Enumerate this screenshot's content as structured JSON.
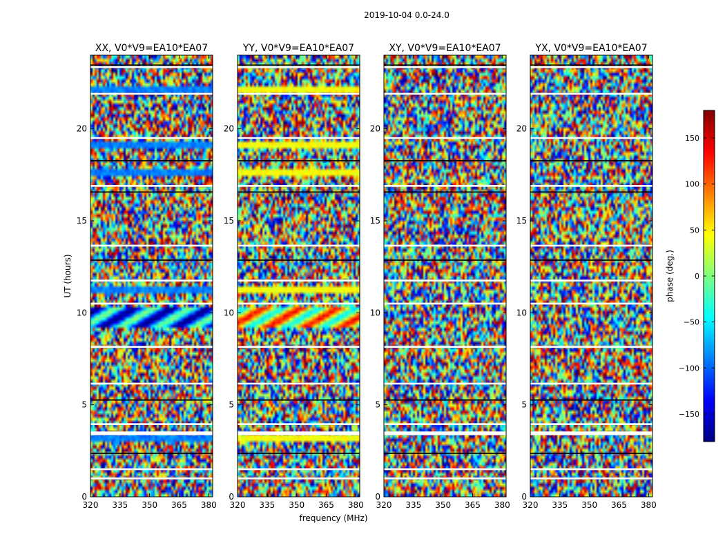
{
  "chart_data": {
    "type": "heatmap",
    "suptitle": "2019-10-04 0.0-24.0",
    "xlabel": "frequency (MHz)",
    "ylabel": "UT (hours)",
    "xlim": [
      320,
      382
    ],
    "ylim": [
      0,
      24
    ],
    "xticks": [
      320,
      335,
      350,
      365,
      380
    ],
    "yticks": [
      0,
      5,
      10,
      15,
      20
    ],
    "panels": [
      {
        "title": "XX, V0*V9=EA10*EA07",
        "pol": "XX"
      },
      {
        "title": "YY, V0*V9=EA10*EA07",
        "pol": "YY"
      },
      {
        "title": "XY, V0*V9=EA10*EA07",
        "pol": "XY"
      },
      {
        "title": "YX, V0*V9=EA10*EA07",
        "pol": "YX"
      }
    ],
    "colorbar": {
      "label": "phase (deg.)",
      "range": [
        -180,
        180
      ],
      "ticks": [
        150,
        100,
        50,
        0,
        -50,
        -100,
        -150
      ],
      "tick_labels": [
        "150",
        "100",
        "50",
        "0",
        "−50",
        "−100",
        "−150"
      ],
      "colormap": [
        "#00007f",
        "#0000ff",
        "#007fff",
        "#00ffff",
        "#7fff7f",
        "#ffff00",
        "#ff7f00",
        "#ff0000",
        "#7f0000"
      ]
    },
    "flagged_gaps_hours": [
      [
        0.95,
        1.05
      ],
      [
        1.45,
        1.55
      ],
      [
        3.35,
        3.55
      ],
      [
        3.9,
        4.0
      ],
      [
        6.1,
        6.2
      ],
      [
        8.1,
        8.2
      ],
      [
        10.45,
        10.55
      ],
      [
        11.7,
        11.8
      ],
      [
        13.6,
        13.7
      ],
      [
        16.85,
        16.95
      ],
      [
        19.45,
        19.55
      ],
      [
        21.85,
        21.95
      ],
      [
        23.3,
        23.4
      ]
    ],
    "smooth_bands_hours": [
      [
        9.2,
        10.3
      ],
      [
        11.1,
        11.5
      ],
      [
        17.5,
        17.8
      ],
      [
        19.0,
        19.4
      ],
      [
        22.0,
        22.4
      ],
      [
        3.0,
        3.3
      ]
    ]
  }
}
